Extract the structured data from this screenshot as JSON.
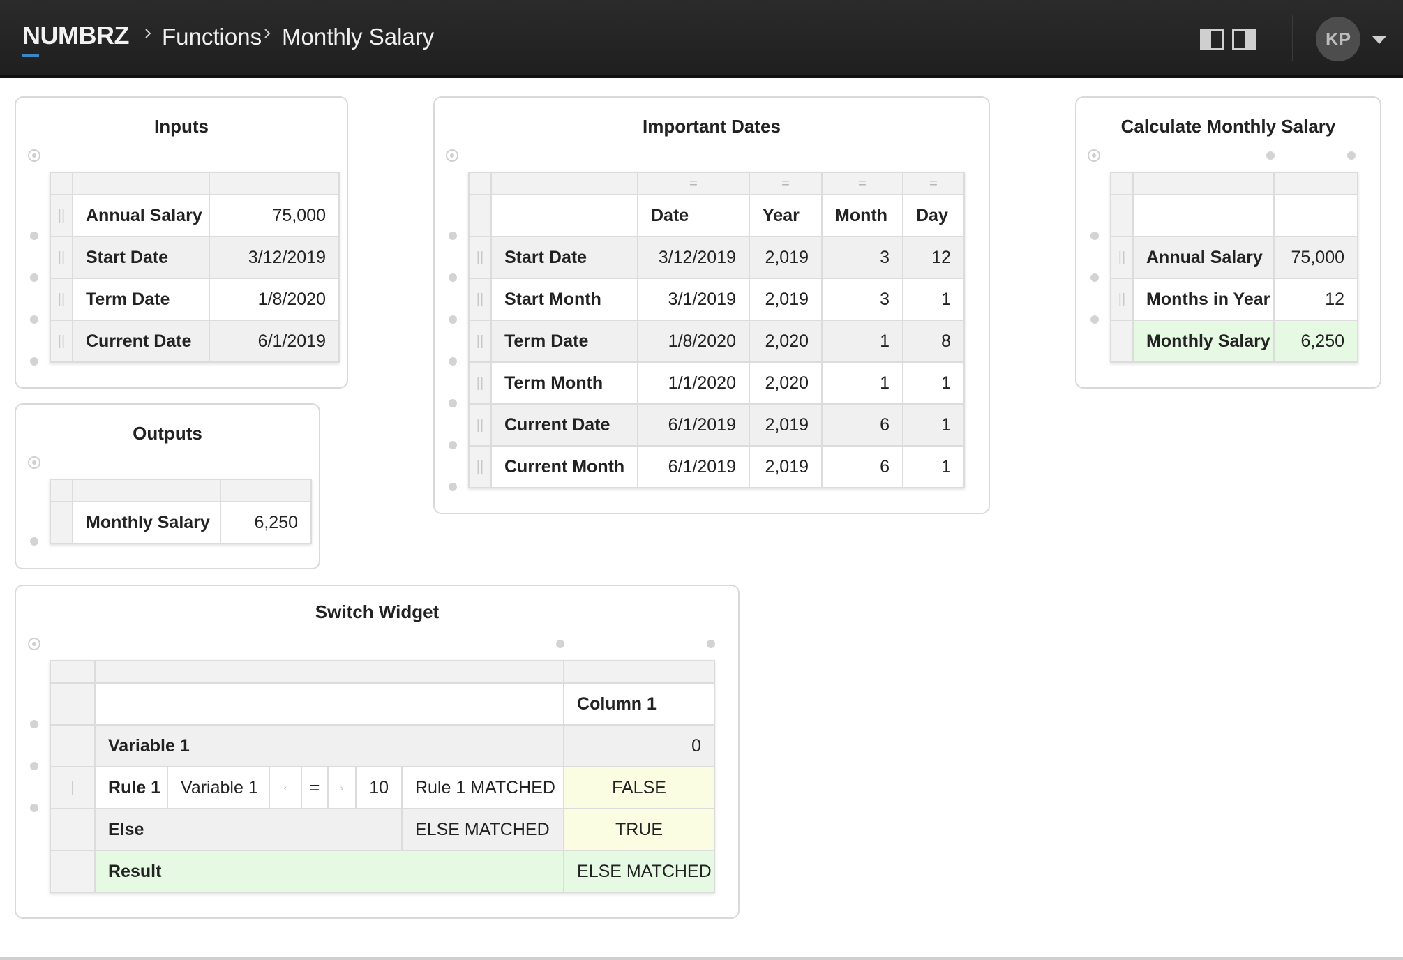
{
  "header": {
    "logo": "NUMBRZ",
    "breadcrumb": [
      "Functions",
      "Monthly Salary"
    ],
    "user_initials": "KP"
  },
  "inputs_panel": {
    "title": "Inputs",
    "rows": [
      {
        "label": "Annual Salary",
        "value": "75,000"
      },
      {
        "label": "Start Date",
        "value": "3/12/2019"
      },
      {
        "label": "Term Date",
        "value": "1/8/2020"
      },
      {
        "label": "Current Date",
        "value": "6/1/2019"
      }
    ]
  },
  "outputs_panel": {
    "title": "Outputs",
    "rows": [
      {
        "label": "Monthly Salary",
        "value": "6,250"
      }
    ]
  },
  "dates_panel": {
    "title": "Important Dates",
    "sort_icon": "=",
    "columns": [
      "Date",
      "Year",
      "Month",
      "Day"
    ],
    "rows": [
      {
        "label": "Start Date",
        "date": "3/12/2019",
        "year": "2,019",
        "month": "3",
        "day": "12"
      },
      {
        "label": "Start Month",
        "date": "3/1/2019",
        "year": "2,019",
        "month": "3",
        "day": "1"
      },
      {
        "label": "Term Date",
        "date": "1/8/2020",
        "year": "2,020",
        "month": "1",
        "day": "8"
      },
      {
        "label": "Term Month",
        "date": "1/1/2020",
        "year": "2,020",
        "month": "1",
        "day": "1"
      },
      {
        "label": "Current Date",
        "date": "6/1/2019",
        "year": "2,019",
        "month": "6",
        "day": "1"
      },
      {
        "label": "Current Month",
        "date": "6/1/2019",
        "year": "2,019",
        "month": "6",
        "day": "1"
      }
    ]
  },
  "calc_panel": {
    "title": "Calculate Monthly Salary",
    "rows": [
      {
        "label": "Annual Salary",
        "value": "75,000"
      },
      {
        "label": "Months in Year",
        "value": "12"
      },
      {
        "label": "Monthly Salary",
        "value": "6,250"
      }
    ]
  },
  "switch_panel": {
    "title": "Switch Widget",
    "column_header": "Column 1",
    "variable": {
      "label": "Variable 1",
      "value": "0"
    },
    "rule": {
      "label": "Rule 1",
      "variable": "Variable 1",
      "operator": "=",
      "compare_value": "10",
      "result_text": "Rule 1 MATCHED",
      "value": "FALSE"
    },
    "else": {
      "label": "Else",
      "result_text": "ELSE MATCHED",
      "value": "TRUE"
    },
    "result": {
      "label": "Result",
      "value": "ELSE MATCHED"
    }
  },
  "colors": {
    "header_bg": "#222222",
    "accent": "#3d86c6",
    "green_cell": "#e6f9e3",
    "yellow_cell": "#fbfde3",
    "row_alt": "#f0f0f0"
  },
  "icons": [
    "chevron-right-icon",
    "layout-left-icon",
    "layout-right-icon",
    "caret-down-icon",
    "drag-handle-icon",
    "anchor-icon",
    "sort-icon",
    "arrow-left-icon",
    "arrow-right-icon"
  ]
}
